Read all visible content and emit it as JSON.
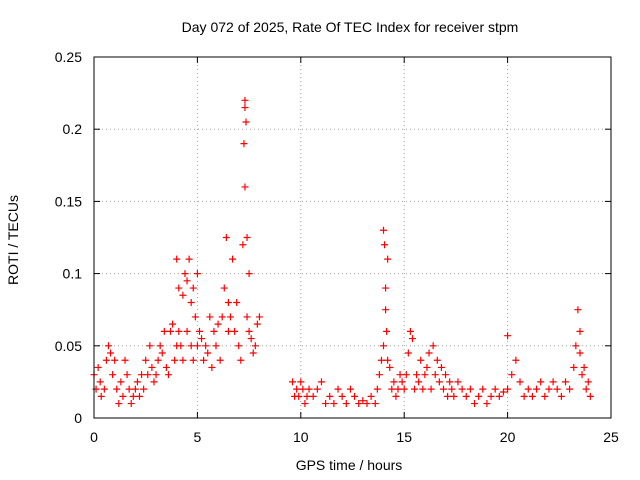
{
  "chart_data": {
    "type": "scatter",
    "title": "Day 072 of 2025, Rate Of TEC Index for receiver stpm",
    "xlabel": "GPS time / hours",
    "ylabel": "ROTI / TECUs",
    "xlim": [
      0,
      25
    ],
    "ylim": [
      0,
      0.25
    ],
    "xticks": [
      0,
      5,
      10,
      15,
      20,
      25
    ],
    "yticks": [
      0,
      0.05,
      0.1,
      0.15,
      0.2,
      0.25
    ],
    "xtick_labels": [
      "0",
      "5",
      "10",
      "15",
      "20",
      "25"
    ],
    "ytick_labels": [
      "0",
      "0.05",
      "0.1",
      "0.15",
      "0.2",
      "0.25"
    ],
    "grid": true,
    "marker": "+",
    "color": "#ff0000",
    "series": [
      {
        "name": "ROTI",
        "x": [
          0.0,
          0.1,
          0.2,
          0.3,
          0.35,
          0.5,
          0.6,
          0.7,
          0.8,
          0.9,
          1.0,
          1.1,
          1.2,
          1.3,
          1.4,
          1.5,
          1.6,
          1.7,
          1.8,
          1.9,
          2.0,
          2.1,
          2.2,
          2.3,
          2.4,
          2.5,
          2.6,
          2.7,
          2.8,
          2.9,
          3.0,
          3.1,
          3.2,
          3.3,
          3.4,
          3.5,
          3.6,
          3.7,
          3.8,
          3.9,
          4.0,
          4.0,
          4.1,
          4.1,
          4.2,
          4.3,
          4.3,
          4.4,
          4.5,
          4.5,
          4.6,
          4.7,
          4.7,
          4.8,
          4.8,
          4.9,
          5.0,
          5.0,
          5.1,
          5.2,
          5.3,
          5.4,
          5.5,
          5.6,
          5.7,
          5.8,
          5.9,
          6.0,
          6.1,
          6.2,
          6.3,
          6.4,
          6.5,
          6.5,
          6.6,
          6.7,
          6.8,
          6.9,
          7.0,
          7.1,
          7.2,
          7.25,
          7.3,
          7.3,
          7.3,
          7.35,
          7.4,
          7.4,
          7.5,
          7.5,
          7.6,
          7.7,
          7.8,
          7.9,
          8.0,
          9.6,
          9.7,
          9.8,
          9.9,
          10.0,
          10.1,
          10.2,
          10.3,
          10.4,
          10.6,
          10.8,
          11.0,
          11.2,
          11.4,
          11.6,
          11.8,
          12.0,
          12.2,
          12.4,
          12.6,
          12.8,
          13.0,
          13.2,
          13.4,
          13.6,
          13.7,
          13.8,
          13.9,
          14.0,
          14.0,
          14.05,
          14.1,
          14.1,
          14.15,
          14.2,
          14.2,
          14.3,
          14.4,
          14.5,
          14.6,
          14.7,
          14.8,
          14.9,
          15.0,
          15.1,
          15.2,
          15.3,
          15.4,
          15.5,
          15.6,
          15.7,
          15.8,
          15.9,
          16.0,
          16.1,
          16.2,
          16.3,
          16.4,
          16.5,
          16.6,
          16.7,
          16.8,
          16.9,
          17.0,
          17.1,
          17.2,
          17.3,
          17.4,
          17.6,
          17.8,
          18.0,
          18.2,
          18.4,
          18.6,
          18.8,
          19.0,
          19.2,
          19.4,
          19.6,
          19.8,
          20.0,
          20.0,
          20.2,
          20.4,
          20.6,
          20.8,
          21.0,
          21.2,
          21.4,
          21.6,
          21.8,
          22.0,
          22.2,
          22.4,
          22.6,
          22.8,
          23.0,
          23.2,
          23.3,
          23.4,
          23.5,
          23.5,
          23.6,
          23.7,
          23.8,
          23.9,
          24.0
        ],
        "y": [
          0.03,
          0.02,
          0.035,
          0.025,
          0.015,
          0.02,
          0.04,
          0.05,
          0.045,
          0.03,
          0.04,
          0.02,
          0.01,
          0.025,
          0.015,
          0.04,
          0.03,
          0.02,
          0.01,
          0.015,
          0.02,
          0.025,
          0.015,
          0.03,
          0.02,
          0.04,
          0.03,
          0.05,
          0.035,
          0.025,
          0.03,
          0.04,
          0.05,
          0.045,
          0.06,
          0.035,
          0.03,
          0.06,
          0.065,
          0.04,
          0.11,
          0.05,
          0.09,
          0.06,
          0.05,
          0.085,
          0.04,
          0.1,
          0.095,
          0.06,
          0.11,
          0.08,
          0.05,
          0.09,
          0.04,
          0.07,
          0.1,
          0.05,
          0.06,
          0.055,
          0.04,
          0.05,
          0.045,
          0.07,
          0.035,
          0.06,
          0.05,
          0.065,
          0.04,
          0.07,
          0.09,
          0.125,
          0.08,
          0.06,
          0.07,
          0.11,
          0.06,
          0.08,
          0.05,
          0.04,
          0.12,
          0.19,
          0.215,
          0.16,
          0.22,
          0.205,
          0.125,
          0.07,
          0.06,
          0.1,
          0.055,
          0.045,
          0.05,
          0.065,
          0.07,
          0.025,
          0.015,
          0.02,
          0.015,
          0.025,
          0.02,
          0.01,
          0.015,
          0.02,
          0.015,
          0.02,
          0.025,
          0.01,
          0.015,
          0.01,
          0.02,
          0.015,
          0.01,
          0.02,
          0.015,
          0.01,
          0.012,
          0.01,
          0.015,
          0.01,
          0.02,
          0.03,
          0.04,
          0.13,
          0.05,
          0.12,
          0.075,
          0.09,
          0.06,
          0.11,
          0.04,
          0.035,
          0.02,
          0.025,
          0.015,
          0.02,
          0.03,
          0.025,
          0.02,
          0.03,
          0.045,
          0.06,
          0.055,
          0.02,
          0.03,
          0.025,
          0.04,
          0.02,
          0.03,
          0.035,
          0.045,
          0.02,
          0.05,
          0.03,
          0.04,
          0.025,
          0.035,
          0.02,
          0.03,
          0.015,
          0.025,
          0.02,
          0.015,
          0.025,
          0.02,
          0.015,
          0.02,
          0.01,
          0.015,
          0.02,
          0.01,
          0.015,
          0.02,
          0.015,
          0.018,
          0.057,
          0.02,
          0.03,
          0.04,
          0.025,
          0.015,
          0.02,
          0.015,
          0.02,
          0.025,
          0.015,
          0.02,
          0.025,
          0.02,
          0.015,
          0.025,
          0.02,
          0.035,
          0.05,
          0.075,
          0.06,
          0.045,
          0.03,
          0.035,
          0.02,
          0.025,
          0.015
        ]
      }
    ]
  }
}
